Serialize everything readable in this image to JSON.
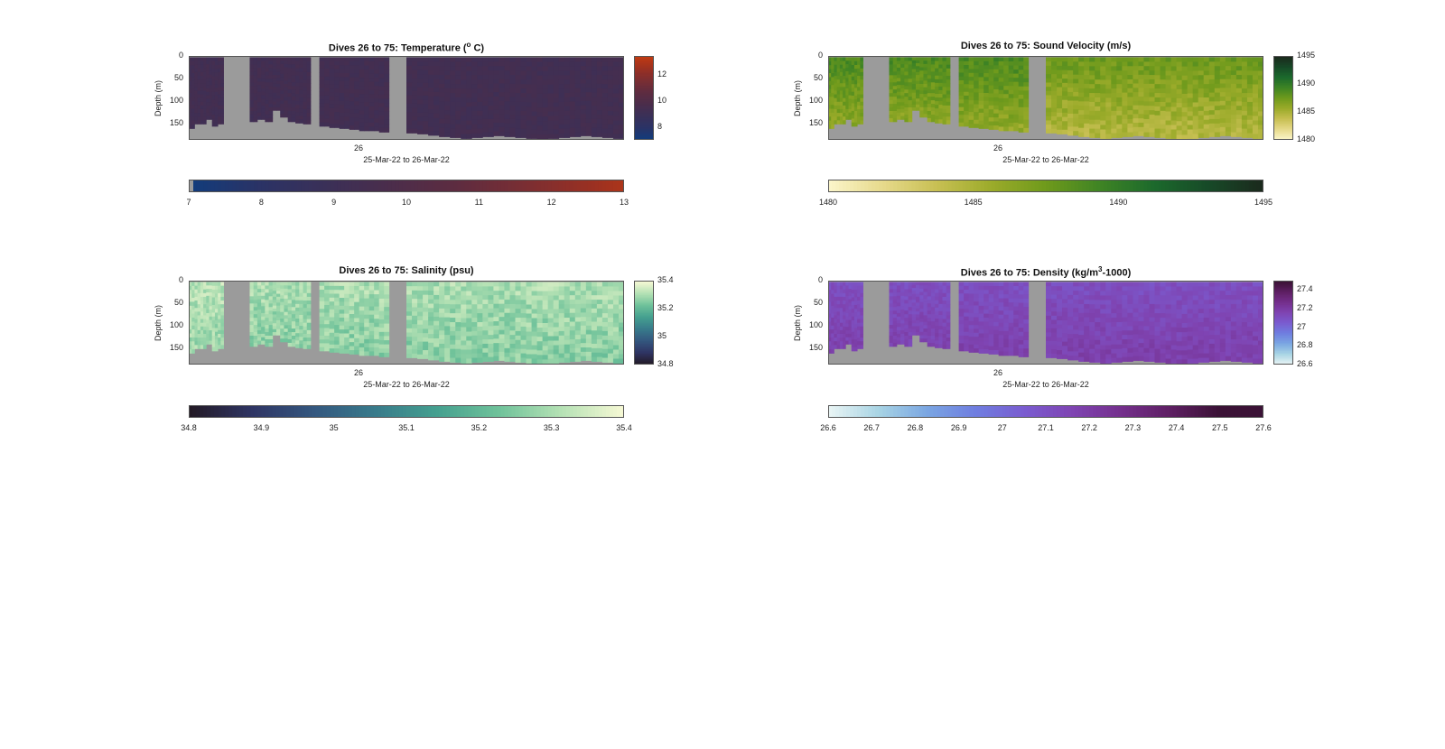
{
  "chart_data": [
    {
      "type": "heatmap",
      "id": "temperature",
      "title_main": "Dives 26 to 75: Temperature (",
      "title_sup": "o",
      "title_end": " C)",
      "ylabel": "Depth (m)",
      "xlabel": "25-Mar-22 to 26-Mar-22",
      "x_ticks": [
        "26"
      ],
      "y_ticks": [
        "0",
        "50",
        "100",
        "150"
      ],
      "ylim": [
        0,
        185
      ],
      "colorbar_ticks": [
        "8",
        "10",
        "12"
      ],
      "colorbar_range": [
        7,
        13.5
      ],
      "hcolorbar_ticks": [
        "7",
        "8",
        "9",
        "10",
        "11",
        "12",
        "13"
      ],
      "hcolorbar_range": [
        7,
        13
      ],
      "colormap": [
        "#123c7c",
        "#2a3366",
        "#3a3058",
        "#4b2d4b",
        "#5e2c40",
        "#7a2e33",
        "#9a3022",
        "#c03a12"
      ],
      "field_value": 9.3,
      "field_variation": 0.25
    },
    {
      "type": "heatmap",
      "id": "sound-velocity",
      "title_main": "Dives 26 to 75: Sound Velocity (m/s)",
      "title_sup": "",
      "title_end": "",
      "ylabel": "Depth (m)",
      "xlabel": "25-Mar-22 to 26-Mar-22",
      "x_ticks": [
        "26"
      ],
      "y_ticks": [
        "0",
        "50",
        "100",
        "150"
      ],
      "ylim": [
        0,
        185
      ],
      "colorbar_ticks": [
        "1480",
        "1485",
        "1490",
        "1495"
      ],
      "colorbar_range": [
        1480,
        1495
      ],
      "hcolorbar_ticks": [
        "1480",
        "1485",
        "1490",
        "1495"
      ],
      "hcolorbar_range": [
        1480,
        1495
      ],
      "colormap": [
        "#fbf5c9",
        "#e6d98a",
        "#c7bf52",
        "#9bab2a",
        "#6f9a1c",
        "#3f8424",
        "#1c6a2c",
        "#174a28",
        "#1b2a1d"
      ],
      "field_value": 1487.2,
      "field_variation": 1.2
    },
    {
      "type": "heatmap",
      "id": "salinity",
      "title_main": "Dives 26 to 75: Salinity (psu)",
      "title_sup": "",
      "title_end": "",
      "ylabel": "Depth (m)",
      "xlabel": "25-Mar-22 to 26-Mar-22",
      "x_ticks": [
        "26"
      ],
      "y_ticks": [
        "0",
        "50",
        "100",
        "150"
      ],
      "ylim": [
        0,
        185
      ],
      "colorbar_ticks": [
        "34.8",
        "35",
        "35.2",
        "35.4"
      ],
      "colorbar_range": [
        34.8,
        35.4
      ],
      "hcolorbar_ticks": [
        "34.8",
        "34.9",
        "35",
        "35.1",
        "35.2",
        "35.3",
        "35.4"
      ],
      "hcolorbar_range": [
        34.8,
        35.4
      ],
      "colormap": [
        "#231a26",
        "#2f3564",
        "#34577f",
        "#387b8b",
        "#45a08f",
        "#6fc29a",
        "#b4e1b4",
        "#f5f8d4"
      ],
      "field_value": 35.28,
      "field_variation": 0.06
    },
    {
      "type": "heatmap",
      "id": "density",
      "title_main": "Dives 26 to 75: Density (kg/m",
      "title_sup": "3",
      "title_end": "-1000)",
      "ylabel": "Depth (m)",
      "xlabel": "25-Mar-22 to 26-Mar-22",
      "x_ticks": [
        "26"
      ],
      "y_ticks": [
        "0",
        "50",
        "100",
        "150"
      ],
      "ylim": [
        0,
        185
      ],
      "colorbar_ticks": [
        "26.6",
        "26.8",
        "27",
        "27.2",
        "27.4"
      ],
      "colorbar_range": [
        26.6,
        27.5
      ],
      "hcolorbar_ticks": [
        "26.6",
        "26.7",
        "26.8",
        "26.9",
        "27",
        "27.1",
        "27.2",
        "27.3",
        "27.4",
        "27.5",
        "27.6"
      ],
      "hcolorbar_range": [
        26.6,
        27.6
      ],
      "colormap": [
        "#e8f4f4",
        "#a8d4e4",
        "#7aa6e2",
        "#6f7ee0",
        "#7a5cd0",
        "#7f44b2",
        "#742f8c",
        "#5e1f63",
        "#3b1236"
      ],
      "field_value": 27.15,
      "field_variation": 0.05
    }
  ]
}
